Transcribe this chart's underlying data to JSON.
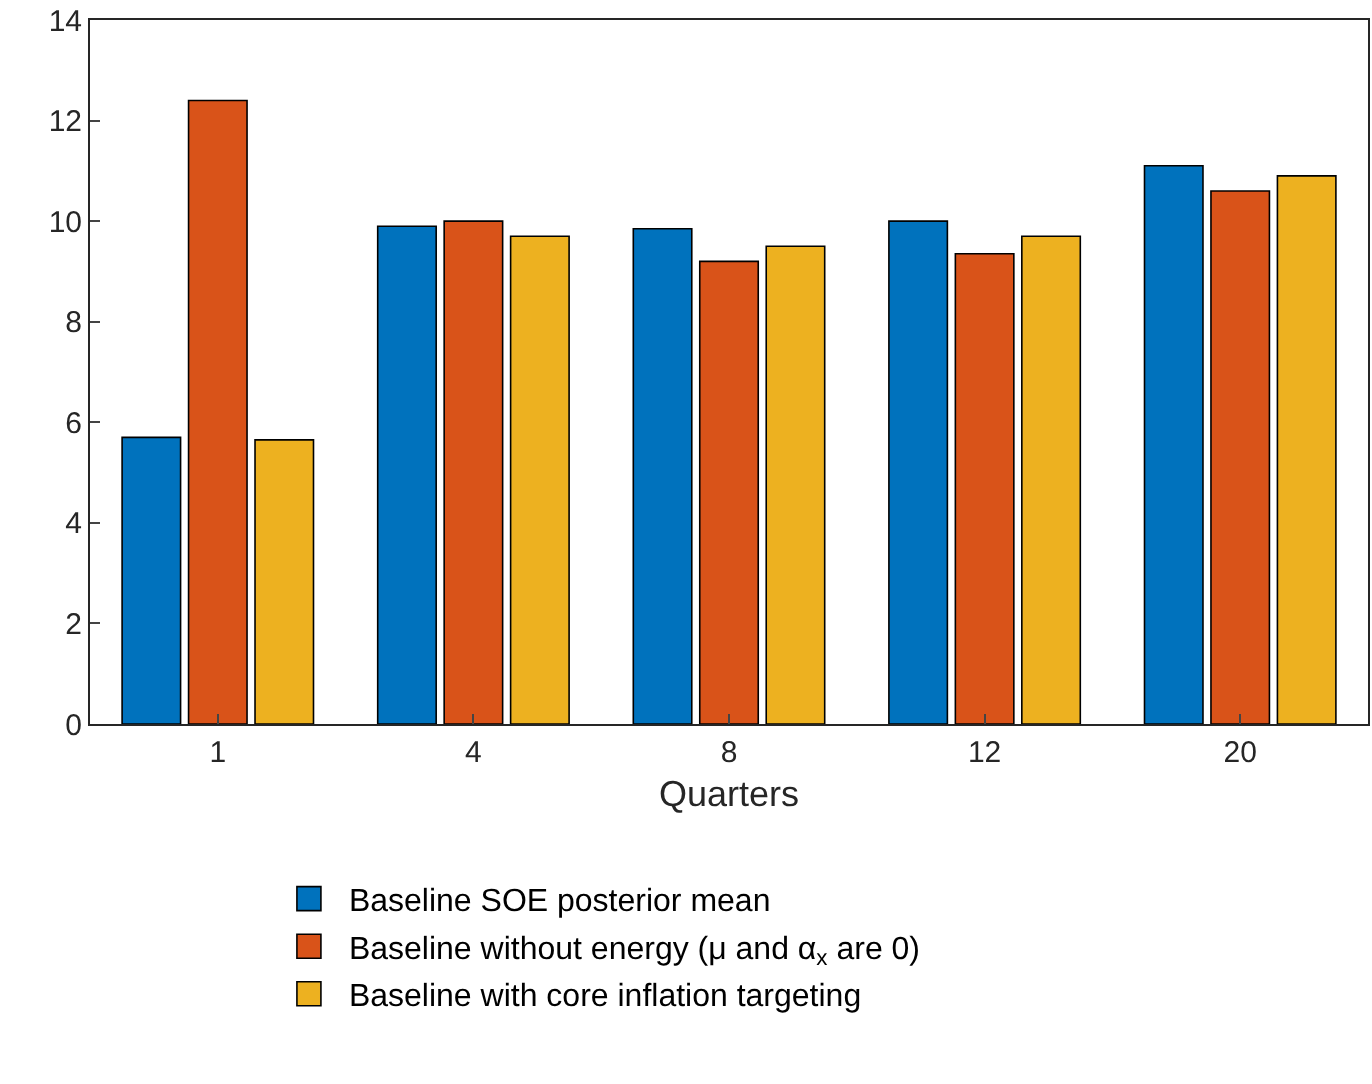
{
  "chart_data": {
    "type": "bar",
    "xlabel": "Quarters",
    "categories": [
      "1",
      "4",
      "8",
      "12",
      "20"
    ],
    "series": [
      {
        "name": "Baseline SOE posterior mean",
        "color": "#0072bd",
        "values": [
          5.7,
          9.9,
          9.85,
          10.0,
          11.1
        ]
      },
      {
        "name": "Baseline without energy (μ and α$_{x}$ are 0)",
        "color": "#d95319",
        "values": [
          12.4,
          10.0,
          9.2,
          9.35,
          10.6
        ]
      },
      {
        "name": "Baseline with core inflation targeting",
        "color": "#edb120",
        "values": [
          5.65,
          9.7,
          9.5,
          9.7,
          10.9
        ]
      }
    ],
    "ylim": [
      0,
      14
    ],
    "yticks": [
      0,
      2,
      4,
      6,
      8,
      10,
      12,
      14
    ],
    "grid": false,
    "legend": "bottom"
  }
}
